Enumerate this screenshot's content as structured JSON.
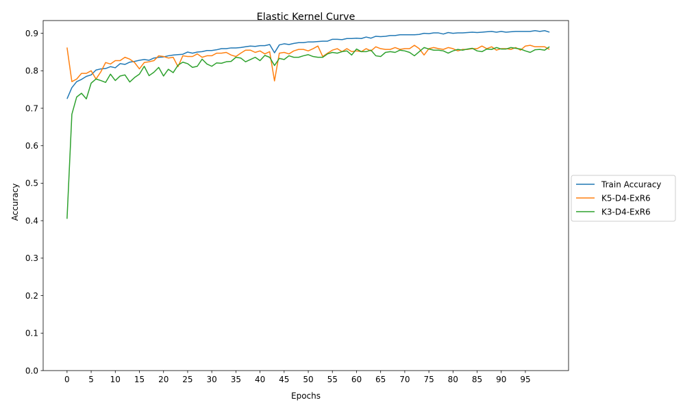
{
  "chart_data": {
    "type": "line",
    "title": "Elastic Kernel Curve",
    "xlabel": "Epochs",
    "ylabel": "Accuracy",
    "xlim": [
      -4.95,
      103.95
    ],
    "ylim": [
      0.0,
      0.934
    ],
    "x_ticks": [
      0,
      5,
      10,
      15,
      20,
      25,
      30,
      35,
      40,
      45,
      50,
      55,
      60,
      65,
      70,
      75,
      80,
      85,
      90,
      95
    ],
    "y_ticks": [
      0.0,
      0.1,
      0.2,
      0.3,
      0.4,
      0.5,
      0.6,
      0.7,
      0.8,
      0.9
    ],
    "y_tick_labels": [
      "0.0",
      "0.1",
      "0.2",
      "0.3",
      "0.4",
      "0.5",
      "0.6",
      "0.7",
      "0.8",
      "0.9"
    ],
    "legend_position": "outside right",
    "series": [
      {
        "name": "Train Accuracy",
        "color": "#1f77b4",
        "x_start": 0,
        "values": [
          0.725,
          0.755,
          0.771,
          0.777,
          0.785,
          0.789,
          0.802,
          0.805,
          0.806,
          0.811,
          0.808,
          0.819,
          0.817,
          0.823,
          0.825,
          0.828,
          0.83,
          0.828,
          0.834,
          0.836,
          0.837,
          0.84,
          0.842,
          0.843,
          0.844,
          0.85,
          0.847,
          0.85,
          0.851,
          0.854,
          0.854,
          0.856,
          0.859,
          0.859,
          0.861,
          0.861,
          0.862,
          0.864,
          0.866,
          0.865,
          0.867,
          0.867,
          0.87,
          0.848,
          0.869,
          0.872,
          0.87,
          0.873,
          0.875,
          0.875,
          0.877,
          0.877,
          0.878,
          0.879,
          0.879,
          0.884,
          0.884,
          0.883,
          0.886,
          0.886,
          0.887,
          0.886,
          0.89,
          0.887,
          0.892,
          0.891,
          0.892,
          0.894,
          0.894,
          0.896,
          0.896,
          0.896,
          0.896,
          0.897,
          0.9,
          0.899,
          0.901,
          0.901,
          0.898,
          0.902,
          0.9,
          0.901,
          0.901,
          0.902,
          0.903,
          0.902,
          0.903,
          0.904,
          0.905,
          0.903,
          0.905,
          0.903,
          0.904,
          0.905,
          0.905,
          0.905,
          0.905,
          0.907,
          0.905,
          0.907,
          0.903
        ]
      },
      {
        "name": "K5-D4-ExR6",
        "color": "#ff7f0e",
        "x_start": 0,
        "values": [
          0.862,
          0.771,
          0.778,
          0.793,
          0.793,
          0.8,
          0.778,
          0.797,
          0.822,
          0.818,
          0.827,
          0.827,
          0.836,
          0.831,
          0.822,
          0.805,
          0.822,
          0.824,
          0.827,
          0.84,
          0.838,
          0.834,
          0.836,
          0.811,
          0.84,
          0.838,
          0.838,
          0.845,
          0.836,
          0.84,
          0.84,
          0.847,
          0.847,
          0.849,
          0.842,
          0.838,
          0.847,
          0.855,
          0.855,
          0.849,
          0.853,
          0.845,
          0.851,
          0.773,
          0.847,
          0.849,
          0.845,
          0.853,
          0.857,
          0.857,
          0.853,
          0.859,
          0.866,
          0.838,
          0.847,
          0.855,
          0.859,
          0.851,
          0.859,
          0.851,
          0.853,
          0.851,
          0.859,
          0.853,
          0.864,
          0.859,
          0.857,
          0.857,
          0.862,
          0.857,
          0.859,
          0.859,
          0.868,
          0.859,
          0.842,
          0.859,
          0.862,
          0.859,
          0.857,
          0.862,
          0.859,
          0.853,
          0.857,
          0.857,
          0.859,
          0.859,
          0.866,
          0.859,
          0.864,
          0.855,
          0.859,
          0.859,
          0.857,
          0.862,
          0.855,
          0.866,
          0.868,
          0.864,
          0.864,
          0.864,
          0.857
        ]
      },
      {
        "name": "K3-D4-ExR6",
        "color": "#2ca02c",
        "x_start": 0,
        "values": [
          0.405,
          0.684,
          0.73,
          0.74,
          0.725,
          0.767,
          0.778,
          0.774,
          0.769,
          0.791,
          0.774,
          0.786,
          0.789,
          0.77,
          0.782,
          0.791,
          0.812,
          0.787,
          0.796,
          0.809,
          0.786,
          0.804,
          0.795,
          0.815,
          0.823,
          0.819,
          0.809,
          0.812,
          0.831,
          0.818,
          0.812,
          0.821,
          0.82,
          0.824,
          0.825,
          0.836,
          0.834,
          0.824,
          0.83,
          0.836,
          0.827,
          0.841,
          0.836,
          0.814,
          0.833,
          0.83,
          0.84,
          0.836,
          0.836,
          0.84,
          0.843,
          0.838,
          0.836,
          0.836,
          0.845,
          0.849,
          0.847,
          0.851,
          0.853,
          0.842,
          0.858,
          0.851,
          0.851,
          0.855,
          0.84,
          0.838,
          0.849,
          0.851,
          0.849,
          0.855,
          0.853,
          0.849,
          0.84,
          0.851,
          0.862,
          0.858,
          0.855,
          0.855,
          0.853,
          0.847,
          0.853,
          0.857,
          0.855,
          0.858,
          0.86,
          0.853,
          0.851,
          0.858,
          0.857,
          0.862,
          0.858,
          0.858,
          0.862,
          0.86,
          0.858,
          0.853,
          0.849,
          0.856,
          0.857,
          0.855,
          0.864
        ]
      }
    ]
  }
}
